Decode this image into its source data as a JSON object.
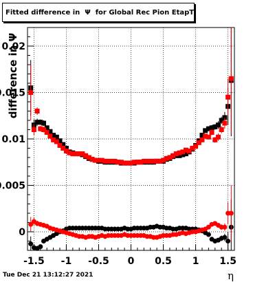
{
  "chart_data": {
    "type": "scatter",
    "title": "Fitted difference in  Ψ  for Global Rec Pion EtapT",
    "ylabel": "difference in Ψ",
    "xlabel": "η",
    "xlim": [
      -1.6,
      1.6
    ],
    "ylim": [
      -0.002,
      0.022
    ],
    "grid": true,
    "x_ticks": [
      -1.5,
      -1,
      -0.5,
      0,
      0.5,
      1,
      1.5
    ],
    "x_tick_labels": [
      "-1.5",
      "-1",
      "-0.5",
      "0",
      "0.5",
      "1",
      "1.5"
    ],
    "y_ticks": [
      0,
      0.005,
      0.01,
      0.015,
      0.02
    ],
    "y_tick_labels": [
      "0",
      "0.005",
      "0.01",
      "0.015",
      "0.02"
    ],
    "colors": {
      "series_black": "#000000",
      "series_red": "#ff0000"
    },
    "series": [
      {
        "marker": "square",
        "color": "#000000",
        "x": [
          -1.55,
          -1.5,
          -1.45,
          -1.4,
          -1.35,
          -1.3,
          -1.25,
          -1.2,
          -1.15,
          -1.1,
          -1.05,
          -1,
          -0.95,
          -0.9,
          -0.85,
          -0.8,
          -0.75,
          -0.7,
          -0.65,
          -0.6,
          -0.55,
          -0.5,
          -0.45,
          -0.4,
          -0.35,
          -0.3,
          -0.25,
          -0.2,
          -0.15,
          -0.1,
          -0.05,
          0,
          0.05,
          0.1,
          0.15,
          0.2,
          0.25,
          0.3,
          0.35,
          0.4,
          0.45,
          0.5,
          0.55,
          0.6,
          0.65,
          0.7,
          0.75,
          0.8,
          0.85,
          0.9,
          0.95,
          1,
          1.05,
          1.1,
          1.15,
          1.2,
          1.25,
          1.3,
          1.35,
          1.4,
          1.45,
          1.5,
          1.55
        ],
        "y": [
          0.0155,
          0.0115,
          0.0118,
          0.0118,
          0.0117,
          0.0112,
          0.0108,
          0.0104,
          0.0102,
          0.0098,
          0.0094,
          0.009,
          0.0086,
          0.0085,
          0.0084,
          0.0084,
          0.0083,
          0.0081,
          0.0079,
          0.0078,
          0.0077,
          0.0076,
          0.0076,
          0.0075,
          0.0075,
          0.0075,
          0.0075,
          0.0075,
          0.0074,
          0.0074,
          0.0074,
          0.0074,
          0.0074,
          0.0075,
          0.0075,
          0.0075,
          0.0075,
          0.0075,
          0.0075,
          0.0076,
          0.0076,
          0.0076,
          0.0078,
          0.0079,
          0.0081,
          0.0082,
          0.0082,
          0.0083,
          0.0084,
          0.0086,
          0.0089,
          0.0093,
          0.0098,
          0.0104,
          0.0109,
          0.0111,
          0.0112,
          0.0113,
          0.0115,
          0.012,
          0.0123,
          0.0135,
          0.0163
        ],
        "err": [
          0.003,
          0.0006,
          0.0004,
          0.0003,
          0.0003,
          0.0002,
          0.0002,
          0.0002,
          0.0002,
          0.0002,
          0.0002,
          0.0002,
          0.0002,
          0.0002,
          0.0002,
          0.0002,
          0.0002,
          0.0002,
          0.0002,
          0.0002,
          0.0002,
          0.0002,
          0.0002,
          0.0002,
          0.0002,
          0.0002,
          0.0002,
          0.0002,
          0.0002,
          0.0002,
          0.0002,
          0.0002,
          0.0002,
          0.0002,
          0.0002,
          0.0002,
          0.0002,
          0.0002,
          0.0002,
          0.0002,
          0.0002,
          0.0002,
          0.0002,
          0.0002,
          0.0002,
          0.0002,
          0.0002,
          0.0002,
          0.0002,
          0.0002,
          0.0002,
          0.0002,
          0.0002,
          0.0002,
          0.0002,
          0.0002,
          0.0003,
          0.0003,
          0.0004,
          0.0004,
          0.0006,
          0.002,
          0.006
        ]
      },
      {
        "marker": "square",
        "color": "#ff0000",
        "x": [
          -1.55,
          -1.5,
          -1.45,
          -1.4,
          -1.35,
          -1.3,
          -1.25,
          -1.2,
          -1.15,
          -1.1,
          -1.05,
          -1,
          -0.95,
          -0.9,
          -0.85,
          -0.8,
          -0.75,
          -0.7,
          -0.65,
          -0.6,
          -0.55,
          -0.5,
          -0.45,
          -0.4,
          -0.35,
          -0.3,
          -0.25,
          -0.2,
          -0.15,
          -0.1,
          -0.05,
          0,
          0.05,
          0.1,
          0.15,
          0.2,
          0.25,
          0.3,
          0.35,
          0.4,
          0.45,
          0.5,
          0.55,
          0.6,
          0.65,
          0.7,
          0.75,
          0.8,
          0.85,
          0.9,
          0.95,
          1,
          1.05,
          1.1,
          1.15,
          1.2,
          1.25,
          1.3,
          1.35,
          1.4,
          1.45,
          1.5,
          1.55
        ],
        "y": [
          0.015,
          0.011,
          0.013,
          0.0111,
          0.011,
          0.0107,
          0.0103,
          0.0099,
          0.0097,
          0.0093,
          0.009,
          0.0087,
          0.0085,
          0.0084,
          0.0084,
          0.0084,
          0.0084,
          0.0082,
          0.008,
          0.0078,
          0.0077,
          0.0077,
          0.0077,
          0.0076,
          0.0076,
          0.0076,
          0.0076,
          0.0075,
          0.0075,
          0.0074,
          0.0074,
          0.0074,
          0.0075,
          0.0075,
          0.0075,
          0.0076,
          0.0076,
          0.0076,
          0.0076,
          0.0076,
          0.0076,
          0.0077,
          0.0079,
          0.008,
          0.0082,
          0.0084,
          0.0085,
          0.0086,
          0.0088,
          0.0087,
          0.009,
          0.0092,
          0.0096,
          0.0099,
          0.0103,
          0.0102,
          0.0107,
          0.0099,
          0.0102,
          0.011,
          0.0117,
          0.0145,
          0.0165
        ],
        "err": [
          0.003,
          0.0006,
          0.0004,
          0.0003,
          0.0003,
          0.0002,
          0.0002,
          0.0002,
          0.0002,
          0.0002,
          0.0002,
          0.0002,
          0.0002,
          0.0002,
          0.0002,
          0.0002,
          0.0002,
          0.0002,
          0.0002,
          0.0002,
          0.0002,
          0.0002,
          0.0002,
          0.0002,
          0.0002,
          0.0002,
          0.0002,
          0.0002,
          0.0002,
          0.0002,
          0.0002,
          0.0002,
          0.0002,
          0.0002,
          0.0002,
          0.0002,
          0.0002,
          0.0002,
          0.0002,
          0.0002,
          0.0002,
          0.0002,
          0.0002,
          0.0002,
          0.0002,
          0.0002,
          0.0002,
          0.0002,
          0.0002,
          0.0002,
          0.0002,
          0.0002,
          0.0002,
          0.0002,
          0.0002,
          0.0002,
          0.0003,
          0.0003,
          0.0004,
          0.0004,
          0.0006,
          0.002,
          0.006
        ]
      },
      {
        "marker": "circle",
        "color": "#000000",
        "x": [
          -1.55,
          -1.5,
          -1.45,
          -1.4,
          -1.35,
          -1.3,
          -1.25,
          -1.2,
          -1.15,
          -1.1,
          -1.05,
          -1,
          -0.95,
          -0.9,
          -0.85,
          -0.8,
          -0.75,
          -0.7,
          -0.65,
          -0.6,
          -0.55,
          -0.5,
          -0.45,
          -0.4,
          -0.35,
          -0.3,
          -0.25,
          -0.2,
          -0.15,
          -0.1,
          -0.05,
          0,
          0.05,
          0.1,
          0.15,
          0.2,
          0.25,
          0.3,
          0.35,
          0.4,
          0.45,
          0.5,
          0.55,
          0.6,
          0.65,
          0.7,
          0.75,
          0.8,
          0.85,
          0.9,
          0.95,
          1,
          1.05,
          1.1,
          1.15,
          1.2,
          1.25,
          1.3,
          1.35,
          1.4,
          1.45,
          1.5,
          1.55
        ],
        "y": [
          -0.0013,
          -0.0017,
          -0.0018,
          -0.0016,
          -0.001,
          -0.0008,
          -0.0006,
          -0.0004,
          -0.0002,
          0,
          0.0001,
          0.0003,
          0.0004,
          0.0004,
          0.0004,
          0.0004,
          0.0004,
          0.0004,
          0.0004,
          0.0004,
          0.0004,
          0.0004,
          0.0004,
          0.0003,
          0.0003,
          0.0003,
          0.0003,
          0.0003,
          0.0003,
          0.0004,
          0.0003,
          0.0003,
          0.0004,
          0.0004,
          0.0004,
          0.0004,
          0.0004,
          0.0005,
          0.0005,
          0.0006,
          0.0005,
          0.0005,
          0.0004,
          0.0004,
          0.0003,
          0.0003,
          0.0004,
          0.0004,
          0.0004,
          0.0003,
          0.0003,
          0.0003,
          0.0002,
          0.0001,
          -0.0001,
          -0.0003,
          -0.0008,
          -0.001,
          -0.0009,
          -0.0007,
          -0.0006,
          -0.001,
          0.0005
        ],
        "err": [
          0.0008,
          0.0004,
          0.0003,
          0.0002,
          0.0002,
          0.0002,
          0.0002,
          0.0001,
          0.0001,
          0.0001,
          0.0001,
          0.0001,
          0.0001,
          0.0001,
          0.0001,
          0.0001,
          0.0001,
          0.0001,
          0.0001,
          0.0001,
          0.0001,
          0.0001,
          0.0001,
          0.0001,
          0.0001,
          0.0001,
          0.0001,
          0.0001,
          0.0001,
          0.0001,
          0.0001,
          0.0001,
          0.0001,
          0.0001,
          0.0001,
          0.0001,
          0.0001,
          0.0001,
          0.0001,
          0.0001,
          0.0001,
          0.0001,
          0.0001,
          0.0001,
          0.0001,
          0.0001,
          0.0001,
          0.0001,
          0.0001,
          0.0001,
          0.0001,
          0.0001,
          0.0001,
          0.0001,
          0.0001,
          0.0002,
          0.0002,
          0.0002,
          0.0002,
          0.0003,
          0.0004,
          0.001,
          0.003
        ]
      },
      {
        "marker": "circle",
        "color": "#ff0000",
        "x": [
          -1.55,
          -1.5,
          -1.45,
          -1.4,
          -1.35,
          -1.3,
          -1.25,
          -1.2,
          -1.15,
          -1.1,
          -1.05,
          -1,
          -0.95,
          -0.9,
          -0.85,
          -0.8,
          -0.75,
          -0.7,
          -0.65,
          -0.6,
          -0.55,
          -0.5,
          -0.45,
          -0.4,
          -0.35,
          -0.3,
          -0.25,
          -0.2,
          -0.15,
          -0.1,
          -0.05,
          0,
          0.05,
          0.1,
          0.15,
          0.2,
          0.25,
          0.3,
          0.35,
          0.4,
          0.45,
          0.5,
          0.55,
          0.6,
          0.65,
          0.7,
          0.75,
          0.8,
          0.85,
          0.9,
          0.95,
          1,
          1.05,
          1.1,
          1.15,
          1.2,
          1.25,
          1.3,
          1.35,
          1.4,
          1.45,
          1.5,
          1.55
        ],
        "y": [
          0.0008,
          0.0011,
          0.0009,
          0.0008,
          0.0007,
          0.0006,
          0.0004,
          0.0003,
          0.0002,
          0.0001,
          0,
          -0.0001,
          -0.0002,
          -0.0003,
          -0.0004,
          -0.0005,
          -0.0005,
          -0.0006,
          -0.0005,
          -0.0005,
          -0.0006,
          -0.0005,
          -0.0004,
          -0.0005,
          -0.0004,
          -0.0004,
          -0.0004,
          -0.0004,
          -0.0004,
          -0.0003,
          -0.0004,
          -0.0004,
          -0.0004,
          -0.0004,
          -0.0004,
          -0.0004,
          -0.0005,
          -0.0005,
          -0.0006,
          -0.0006,
          -0.0005,
          -0.0004,
          -0.0004,
          -0.0004,
          -0.0003,
          -0.0003,
          -0.0002,
          -0.0001,
          -0.0002,
          -0.0001,
          0,
          0,
          0.0001,
          0.0002,
          0.0003,
          0.0005,
          0.0008,
          0.0009,
          0.0007,
          0.0005,
          0.0005,
          0.002,
          0.002
        ],
        "err": [
          0.0008,
          0.0004,
          0.0003,
          0.0002,
          0.0002,
          0.0002,
          0.0002,
          0.0001,
          0.0001,
          0.0001,
          0.0001,
          0.0001,
          0.0001,
          0.0001,
          0.0001,
          0.0001,
          0.0001,
          0.0001,
          0.0001,
          0.0001,
          0.0001,
          0.0001,
          0.0001,
          0.0001,
          0.0001,
          0.0001,
          0.0001,
          0.0001,
          0.0001,
          0.0001,
          0.0001,
          0.0001,
          0.0001,
          0.0001,
          0.0001,
          0.0001,
          0.0001,
          0.0001,
          0.0001,
          0.0001,
          0.0001,
          0.0001,
          0.0001,
          0.0001,
          0.0001,
          0.0001,
          0.0001,
          0.0001,
          0.0001,
          0.0001,
          0.0001,
          0.0001,
          0.0001,
          0.0001,
          0.0001,
          0.0002,
          0.0002,
          0.0002,
          0.0002,
          0.0003,
          0.0004,
          0.0012,
          0.003
        ]
      }
    ],
    "timestamp": "Tue Dec 21 13:12:27 2021"
  }
}
